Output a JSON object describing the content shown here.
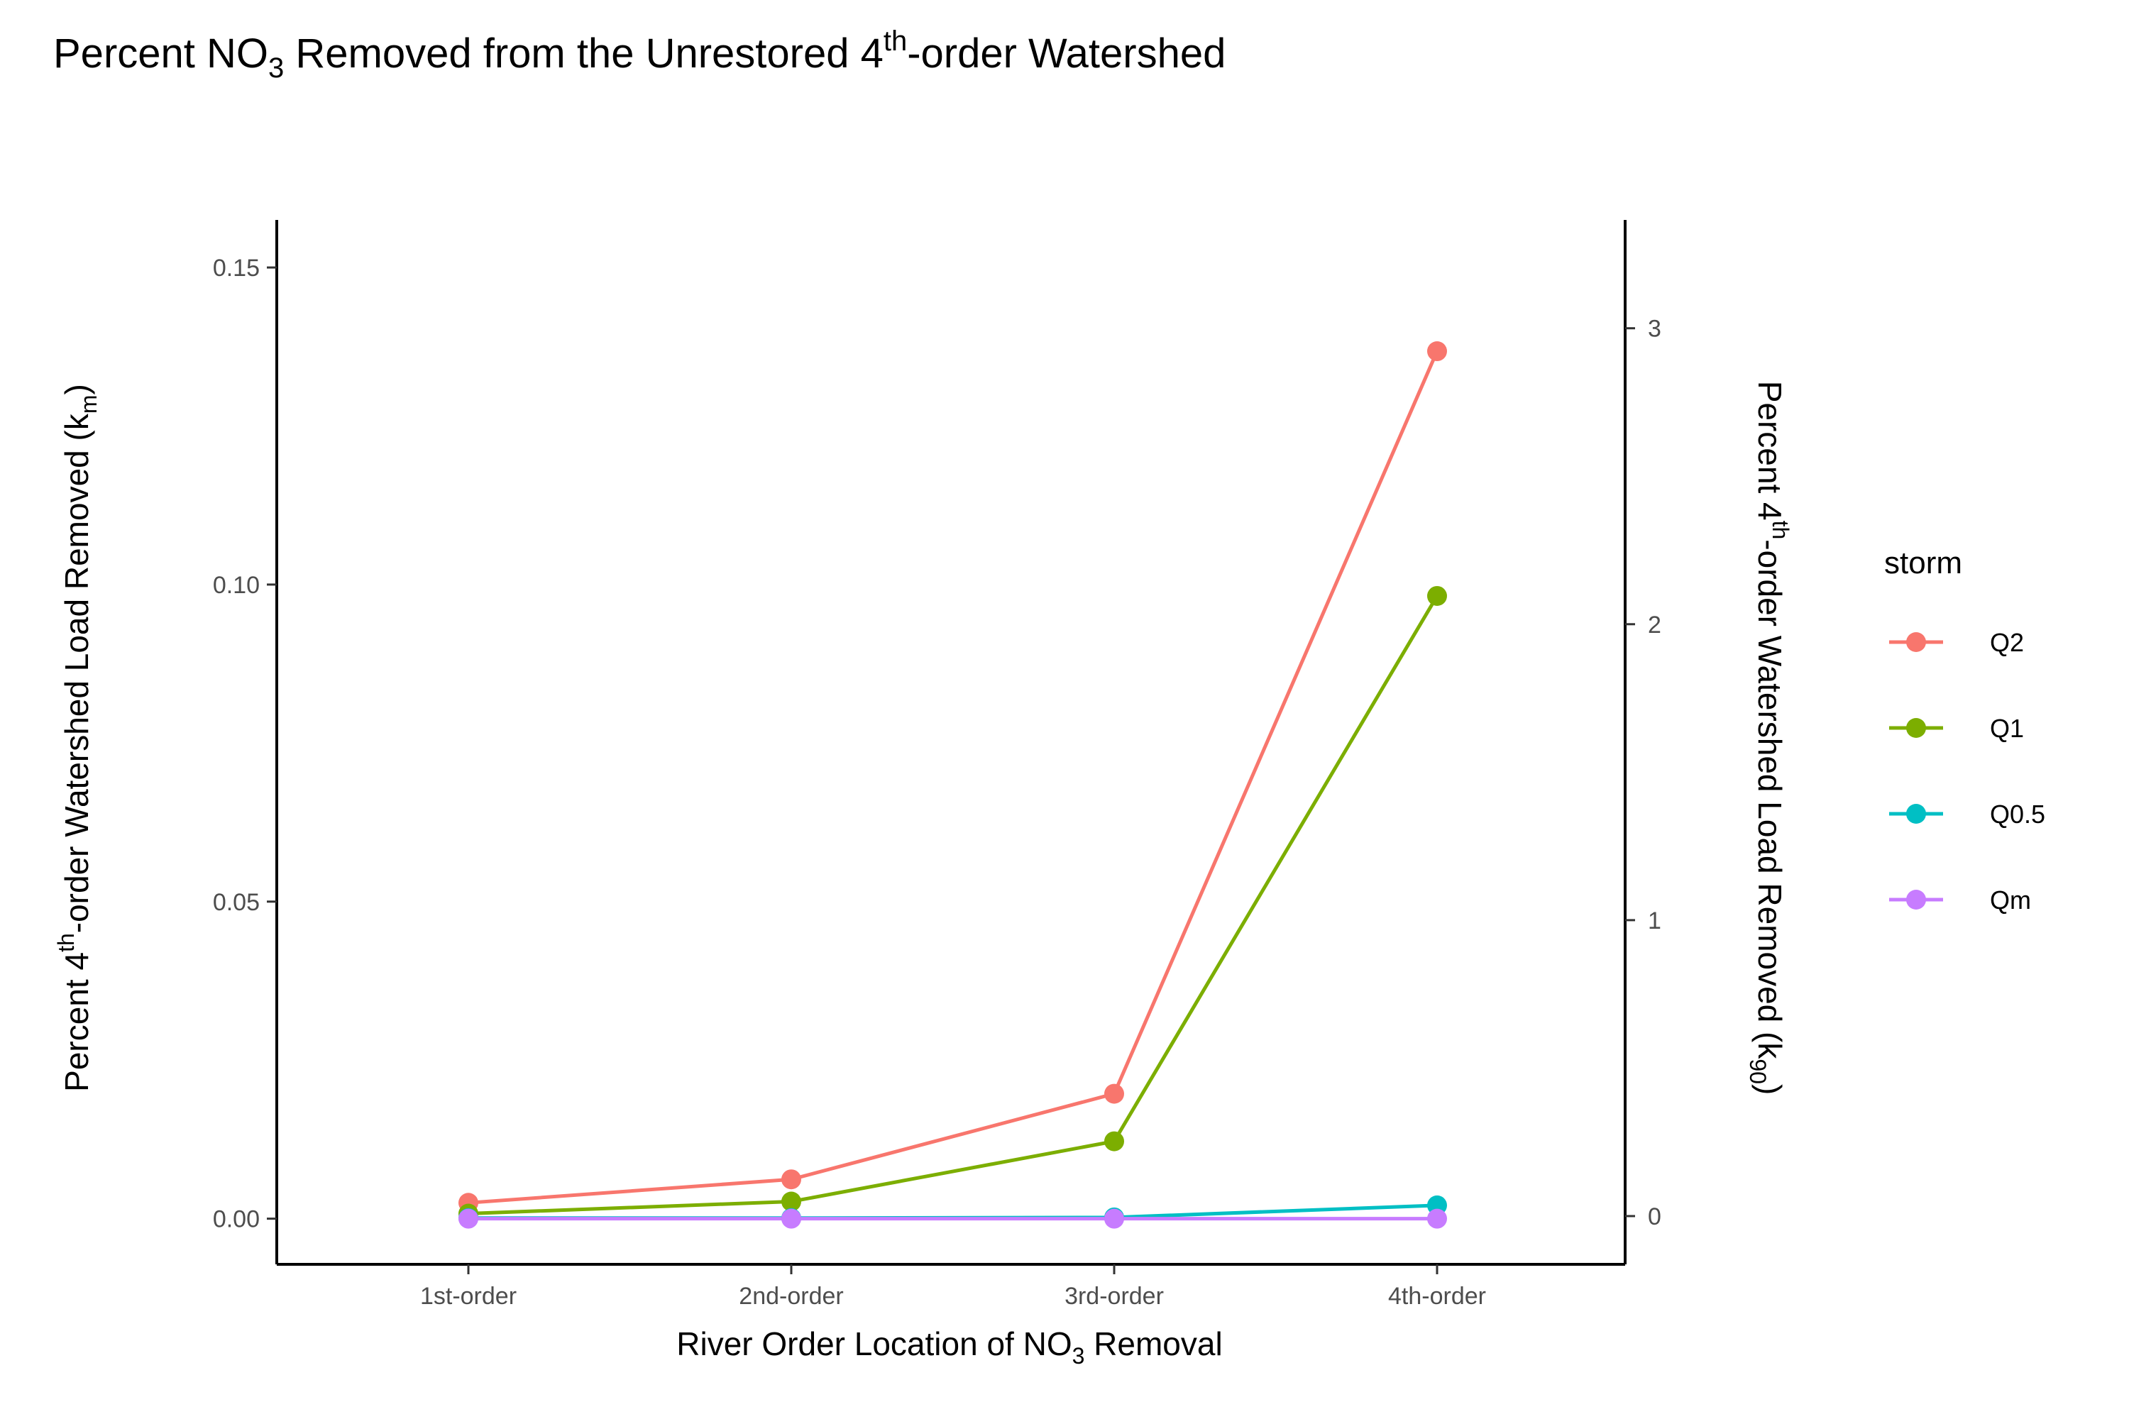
{
  "chart_data": {
    "type": "line",
    "title": {
      "pre": "Percent NO",
      "sub": "3",
      "mid": " Removed from the Unrestored 4",
      "sup": "th",
      "post": "-order Watershed"
    },
    "xlabel": {
      "pre": "River Order Location of NO",
      "sub": "3",
      "post": " Removal"
    },
    "ylabel": {
      "pre": "Percent 4",
      "sup": "th",
      "mid": "-order Watershed Load Removed (k",
      "sub": "m",
      "post": ")"
    },
    "y2label": {
      "pre": "Percent 4",
      "sup": "th",
      "mid": "-order Watershed Load Removed (k",
      "sub": "90",
      "post": ")"
    },
    "categories": [
      "1st-order",
      "2nd-order",
      "3rd-order",
      "4th-order"
    ],
    "ylim": [
      -0.0072,
      0.1575
    ],
    "yticks": [
      0.0,
      0.05,
      0.1,
      0.15
    ],
    "ytick_labels": [
      "0.00",
      "0.05",
      "0.10",
      "0.15"
    ],
    "y2lim": [
      -0.163,
      3.366
    ],
    "y2ticks": [
      0,
      1,
      2,
      3
    ],
    "y2tick_labels": [
      "0",
      "1",
      "2",
      "3"
    ],
    "grid": false,
    "legend": {
      "title": "storm",
      "placement": "right"
    },
    "series": [
      {
        "name": "Q2",
        "color": "#F8766D",
        "values": [
          0.0025,
          0.0062,
          0.0197,
          0.1368
        ]
      },
      {
        "name": "Q1",
        "color": "#7CAE00",
        "values": [
          0.0008,
          0.0027,
          0.0122,
          0.0982
        ]
      },
      {
        "name": "Q0.5",
        "color": "#00BFC4",
        "values": [
          0.0001,
          0.0001,
          0.0002,
          0.0021
        ]
      },
      {
        "name": "Qm",
        "color": "#C77CFF",
        "values": [
          0.0,
          0.0,
          0.0,
          0.0
        ]
      }
    ]
  }
}
